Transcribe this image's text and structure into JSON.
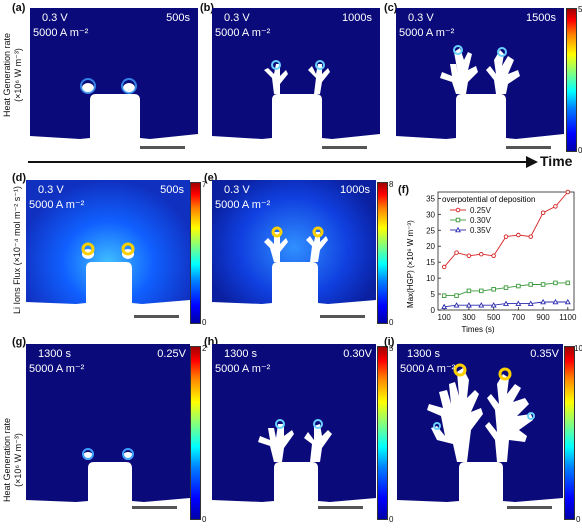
{
  "row1": {
    "ylabel": "Heat Generation rate (×10⁶ W m⁻³)",
    "panels": [
      {
        "letter": "(a)",
        "voltage": "0.3 V",
        "current": "5000 A m⁻²",
        "time": "500s"
      },
      {
        "letter": "(b)",
        "voltage": "0.3 V",
        "current": "5000 A m⁻²",
        "time": "1000s"
      },
      {
        "letter": "(c)",
        "voltage": "0.3 V",
        "current": "5000 A m⁻²",
        "time": "1500s"
      }
    ],
    "colorbar": {
      "max": "5",
      "min": "0"
    }
  },
  "timeline": {
    "label": "Time"
  },
  "row2": {
    "ylabel": "Li Ions Flux (×10⁻⁴ mol m⁻² s⁻¹)",
    "panels": [
      {
        "letter": "(d)",
        "voltage": "0.3 V",
        "current": "5000 A m⁻²",
        "time": "500s",
        "cbar_max": "7",
        "cbar_min": "0"
      },
      {
        "letter": "(e)",
        "voltage": "0.3 V",
        "current": "5000 A m⁻²",
        "time": "1000s",
        "cbar_max": "8",
        "cbar_min": "0"
      }
    ]
  },
  "row3": {
    "ylabel": "Heat Generation rate (×10⁶ W m⁻³)",
    "panels": [
      {
        "letter": "(g)",
        "time": "1300 s",
        "current": "5000 A m⁻²",
        "voltage": "0.25V",
        "cbar_max": "2",
        "cbar_min": "0"
      },
      {
        "letter": "(h)",
        "time": "1300 s",
        "current": "5000 A m⁻²",
        "voltage": "0.30V",
        "cbar_max": "5",
        "cbar_min": "0"
      },
      {
        "letter": "(i)",
        "time": "1300 s",
        "current": "5000 A m⁻²",
        "voltage": "0.35V",
        "cbar_max": "10",
        "cbar_min": "0"
      }
    ]
  },
  "chart_data": {
    "type": "line",
    "letter": "(f)",
    "title": "overpotential of deposition",
    "xlabel": "Times (s)",
    "ylabel": "Max(HGP) (×10⁶ W m⁻³)",
    "x": [
      100,
      200,
      300,
      400,
      500,
      600,
      700,
      800,
      900,
      1000,
      1100
    ],
    "xticks": [
      100,
      300,
      500,
      700,
      900,
      1100
    ],
    "yticks": [
      0,
      5,
      10,
      15,
      20,
      25,
      30,
      35
    ],
    "xlim": [
      50,
      1150
    ],
    "ylim": [
      0,
      37
    ],
    "series": [
      {
        "name": "0.25V",
        "color": "#d62020",
        "marker": "circle",
        "values": [
          13.5,
          18.0,
          17.0,
          17.5,
          17.0,
          23.0,
          23.5,
          23.0,
          30.5,
          32.5,
          37.0
        ]
      },
      {
        "name": "0.30V",
        "color": "#3a9a3a",
        "marker": "square",
        "values": [
          4.5,
          4.5,
          6.0,
          6.0,
          6.5,
          7.0,
          7.5,
          8.0,
          8.0,
          8.5,
          8.5
        ]
      },
      {
        "name": "0.35V",
        "color": "#2a2ab0",
        "marker": "triangle",
        "values": [
          1.0,
          1.5,
          1.5,
          1.5,
          1.5,
          2.0,
          2.0,
          2.0,
          2.5,
          2.5,
          2.5
        ]
      }
    ],
    "legend_position": "top-left"
  }
}
